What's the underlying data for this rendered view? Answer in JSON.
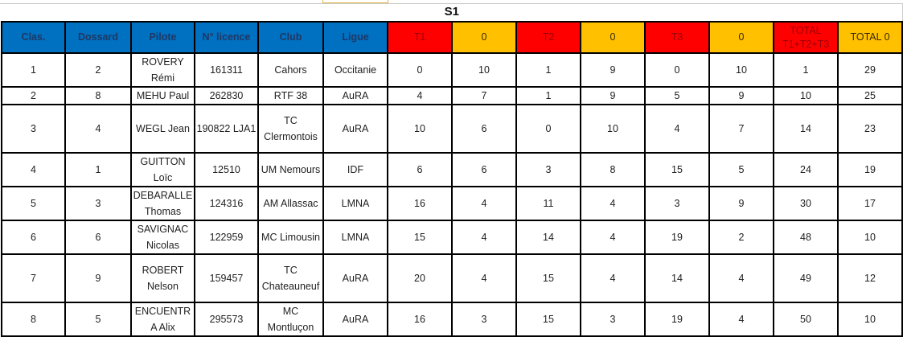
{
  "title": "S1",
  "colors": {
    "header_blue": "#0070c0",
    "header_red": "#ff0000",
    "header_orange": "#ffc000"
  },
  "columns": [
    {
      "label": "Clas.",
      "color": "blue"
    },
    {
      "label": "Dossard",
      "color": "blue"
    },
    {
      "label": "Pilote",
      "color": "blue"
    },
    {
      "label": "N° licence",
      "color": "blue"
    },
    {
      "label": "Club",
      "color": "blue"
    },
    {
      "label": "Ligue",
      "color": "blue"
    },
    {
      "label": "T1",
      "color": "red"
    },
    {
      "label": "0",
      "color": "orange"
    },
    {
      "label": "T2",
      "color": "red"
    },
    {
      "label": "0",
      "color": "orange"
    },
    {
      "label": "T3",
      "color": "red"
    },
    {
      "label": "0",
      "color": "orange"
    },
    {
      "label": "TOTAL T1+T2+T3",
      "color": "red"
    },
    {
      "label": "TOTAL 0",
      "color": "orange"
    }
  ],
  "rows": [
    [
      "1",
      "2",
      "ROVERY Rémi",
      "161311",
      "Cahors",
      "Occitanie",
      "0",
      "10",
      "1",
      "9",
      "0",
      "10",
      "1",
      "29"
    ],
    [
      "2",
      "8",
      "MEHU Paul",
      "262830",
      "RTF 38",
      "AuRA",
      "4",
      "7",
      "1",
      "9",
      "5",
      "9",
      "10",
      "25"
    ],
    [
      "3",
      "4",
      "WEGL Jean",
      "190822 LJA1",
      "TC Clermontois",
      "AuRA",
      "10",
      "6",
      "0",
      "10",
      "4",
      "7",
      "14",
      "23"
    ],
    [
      "4",
      "1",
      "GUITTON Loïc",
      "12510",
      "UM Nemours",
      "IDF",
      "6",
      "6",
      "3",
      "8",
      "15",
      "5",
      "24",
      "19"
    ],
    [
      "5",
      "3",
      "DEBARALLE Thomas",
      "124316",
      "AM Allassac",
      "LMNA",
      "16",
      "4",
      "11",
      "4",
      "3",
      "9",
      "30",
      "17"
    ],
    [
      "6",
      "6",
      "SAVIGNAC Nicolas",
      "122959",
      "MC Limousin",
      "LMNA",
      "15",
      "4",
      "14",
      "4",
      "19",
      "2",
      "48",
      "10"
    ],
    [
      "7",
      "9",
      "ROBERT Nelson",
      "159457",
      "TC Chateauneuf",
      "AuRA",
      "20",
      "4",
      "15",
      "4",
      "14",
      "4",
      "49",
      "12"
    ],
    [
      "8",
      "5",
      "ENCUENTRA Alix",
      "295573",
      "MC Montluçon",
      "AuRA",
      "16",
      "3",
      "15",
      "3",
      "19",
      "4",
      "50",
      "10"
    ]
  ]
}
